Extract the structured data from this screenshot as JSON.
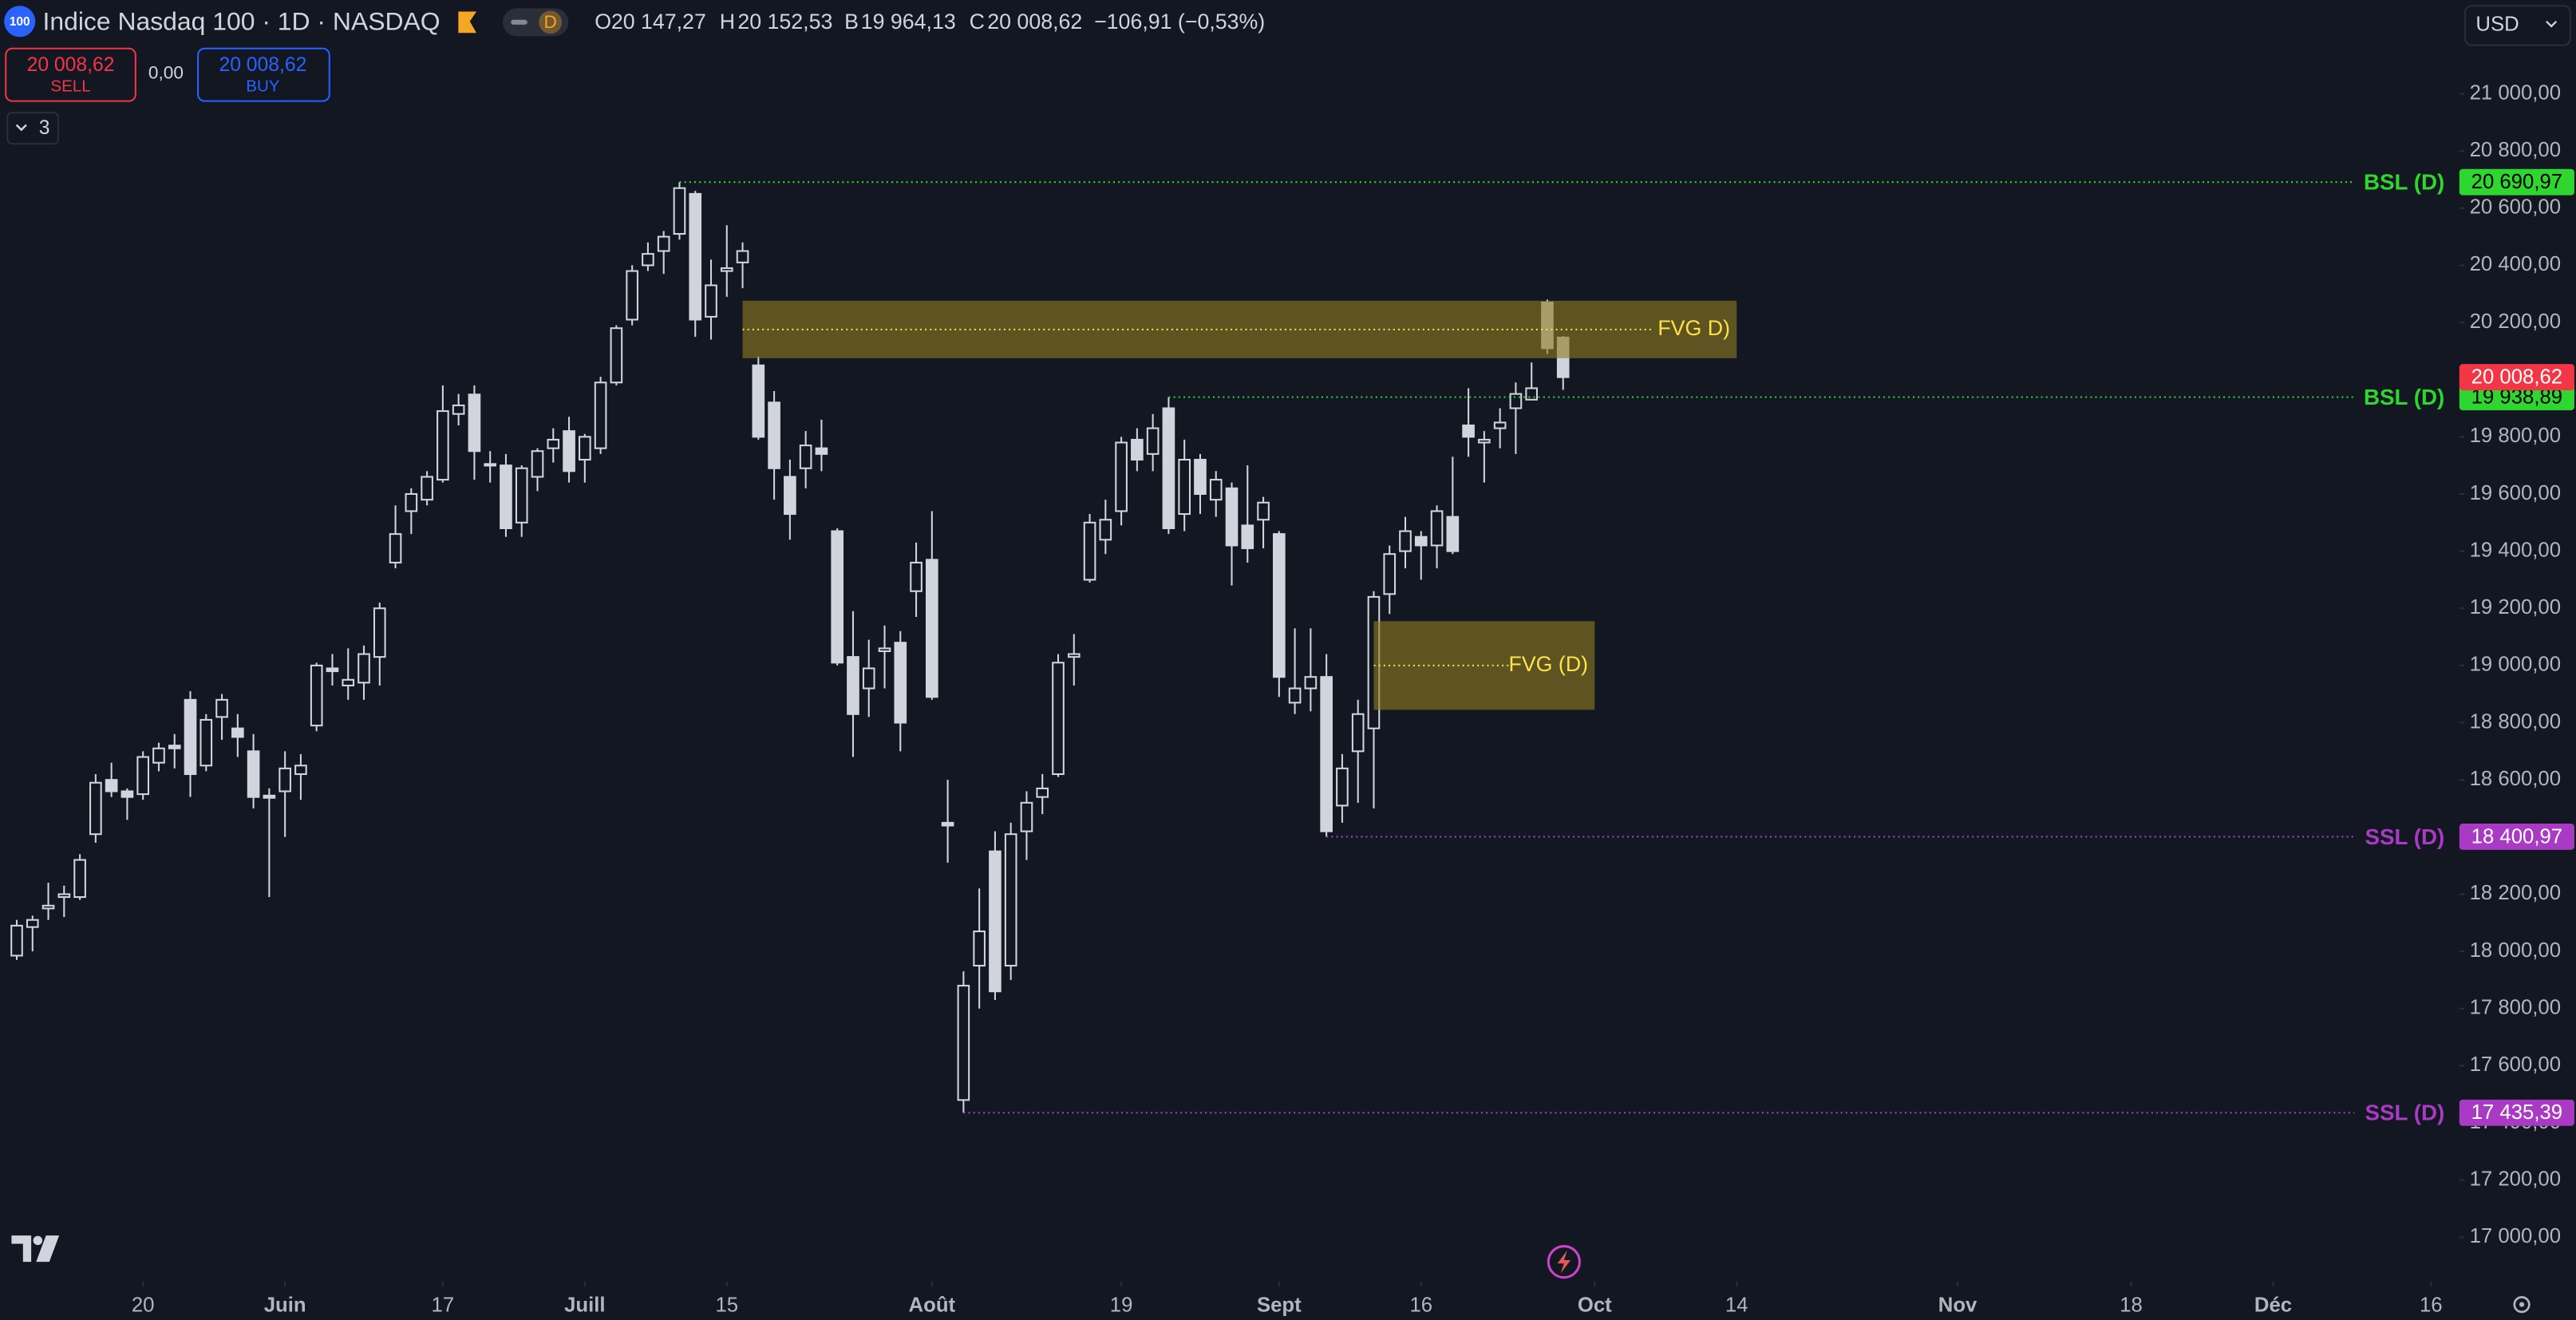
{
  "header": {
    "logo": "100",
    "title": "Indice Nasdaq 100 · 1D · NASDAQ",
    "interval_badge": "D",
    "open_key": "O",
    "open": "20 147,27",
    "high_key": "H",
    "high": "20 152,53",
    "low_key": "B",
    "low": "19 964,13",
    "close_key": "C",
    "close": "20 008,62",
    "change": "−106,91 (−0,53%)",
    "sell_price": "20 008,62",
    "sell": "SELL",
    "spread": "0,00",
    "buy_price": "20 008,62",
    "buy": "BUY",
    "indicators": "3",
    "currency": "USD"
  },
  "chart_data": {
    "type": "candlestick",
    "color": "#d1d4dc",
    "background": "#131722",
    "ohlc": {
      "open": [
        17985,
        18085,
        18150,
        18190,
        18190,
        18410,
        18600,
        18560,
        18550,
        18660,
        18720,
        18880,
        18650,
        18820,
        18780,
        18700,
        18545,
        18560,
        18620,
        18790,
        18990,
        18930,
        18940,
        19030,
        19360,
        19540,
        19580,
        19650,
        19880,
        19948,
        19705,
        19700,
        19500,
        19660,
        19760,
        19820,
        19720,
        19760,
        19990,
        20210,
        20400,
        20450,
        20510,
        20650,
        20220,
        20380,
        20410,
        20050,
        19920,
        19660,
        19690,
        19760,
        19470,
        19030,
        18920,
        19050,
        19080,
        19260,
        19370,
        18450,
        17480,
        17950,
        18350,
        17950,
        18420,
        18540,
        18620,
        19030,
        19300,
        19440,
        19540,
        19790,
        19740,
        19900,
        19530,
        19720,
        19580,
        19620,
        19490,
        19510,
        19460,
        18870,
        18920,
        18960,
        18510,
        18700,
        18780,
        19250,
        19400,
        19450,
        19420,
        19520,
        19840,
        19780,
        19830,
        19900,
        19930,
        20270,
        20147.27
      ],
      "high": [
        18110,
        18125,
        18240,
        18230,
        18340,
        18620,
        18660,
        18570,
        18700,
        18730,
        18760,
        18910,
        18830,
        18900,
        18830,
        18760,
        18570,
        18700,
        18690,
        19010,
        19040,
        19060,
        19070,
        19220,
        19560,
        19620,
        19680,
        19980,
        19950,
        19980,
        19750,
        19740,
        19700,
        19760,
        19830,
        19870,
        19810,
        20010,
        20190,
        20400,
        20480,
        20520,
        20690.97,
        20660,
        20420,
        20540,
        20480,
        20080,
        19960,
        19720,
        19820,
        19860,
        19480,
        19190,
        19090,
        19140,
        19120,
        19430,
        19540,
        18600,
        17930,
        18220,
        18420,
        18450,
        18560,
        18620,
        19040,
        19110,
        19530,
        19580,
        19800,
        19830,
        19880,
        19938.89,
        19790,
        19740,
        19680,
        19640,
        19700,
        19590,
        19470,
        19130,
        19130,
        19040,
        18690,
        18880,
        19260,
        19420,
        19520,
        19470,
        19560,
        19730,
        19970,
        19820,
        19900,
        19990,
        20060,
        20280,
        20152.53
      ],
      "low": [
        17970,
        18000,
        18110,
        18120,
        18180,
        18380,
        18540,
        18460,
        18530,
        18630,
        18640,
        18540,
        18630,
        18740,
        18680,
        18500,
        18190,
        18400,
        18530,
        18770,
        18930,
        18880,
        18880,
        18930,
        19340,
        19460,
        19560,
        19640,
        19840,
        19650,
        19640,
        19450,
        19450,
        19610,
        19710,
        19640,
        19640,
        19740,
        19980,
        20190,
        20380,
        20370,
        20490,
        20150,
        20140,
        20290,
        20320,
        19790,
        19580,
        19440,
        19620,
        19680,
        19000,
        18680,
        18820,
        18920,
        18700,
        19170,
        18880,
        18310,
        17435.39,
        17800,
        17830,
        17900,
        18320,
        18480,
        18610,
        18930,
        19290,
        19390,
        19490,
        19680,
        19680,
        19460,
        19470,
        19530,
        19520,
        19280,
        19360,
        19410,
        18890,
        18830,
        18840,
        18400.97,
        18450,
        18520,
        18500,
        19180,
        19340,
        19300,
        19340,
        19390,
        19730,
        19640,
        19760,
        19740,
        19930,
        20090,
        19964.13
      ],
      "close": [
        18090,
        18110,
        18160,
        18200,
        18320,
        18590,
        18560,
        18540,
        18680,
        18710,
        18710,
        18620,
        18810,
        18880,
        18750,
        18540,
        18537,
        18640,
        18650,
        19000,
        18980,
        18950,
        19040,
        19200,
        19460,
        19600,
        19660,
        19890,
        19910,
        19750,
        19700,
        19480,
        19690,
        19750,
        19790,
        19680,
        19800,
        19990,
        20180,
        20380,
        20440,
        20500,
        20670,
        20210,
        20330,
        20390,
        20450,
        19800,
        19690,
        19530,
        19770,
        19740,
        19010,
        18830,
        18990,
        19060,
        18800,
        19360,
        18890,
        18440,
        17880,
        18070,
        17860,
        18410,
        18520,
        18570,
        19010,
        19040,
        19500,
        19510,
        19780,
        19720,
        19830,
        19480,
        19720,
        19600,
        19650,
        19420,
        19410,
        19570,
        18960,
        18920,
        18960,
        18420,
        18640,
        18830,
        19240,
        19390,
        19470,
        19420,
        19540,
        19400,
        19800,
        19790,
        19850,
        19950,
        19970,
        20110,
        20008.62
      ]
    },
    "last_label": "20 008,62",
    "last_color": "#f23645",
    "xlim": [
      -1.062,
      154.8
    ],
    "xticks": [
      {
        "value": 8,
        "label": "20"
      },
      {
        "value": 17,
        "label": "Juin"
      },
      {
        "value": 27,
        "label": "17"
      },
      {
        "value": 36,
        "label": "Juill"
      },
      {
        "value": 45,
        "label": "15"
      },
      {
        "value": 58,
        "label": "Août"
      },
      {
        "value": 70,
        "label": "19"
      },
      {
        "value": 80,
        "label": "Sept"
      },
      {
        "value": 89,
        "label": "16"
      },
      {
        "value": 100,
        "label": "Oct"
      },
      {
        "value": 109,
        "label": "14"
      },
      {
        "value": 123,
        "label": "Nov"
      },
      {
        "value": 134,
        "label": "18"
      },
      {
        "value": 143,
        "label": "Déc"
      },
      {
        "value": 153,
        "label": "16"
      }
    ],
    "ylim": [
      16845,
      21328
    ],
    "yticks": [
      {
        "value": 21000,
        "label": "21 000,00"
      },
      {
        "value": 20800,
        "label": "20 800,00"
      },
      {
        "value": 20600,
        "label": "20 600,00"
      },
      {
        "value": 20400,
        "label": "20 400,00"
      },
      {
        "value": 20200,
        "label": "20 200,00"
      },
      {
        "value": 19800,
        "label": "19 800,00"
      },
      {
        "value": 19600,
        "label": "19 600,00"
      },
      {
        "value": 19400,
        "label": "19 400,00"
      },
      {
        "value": 19200,
        "label": "19 200,00"
      },
      {
        "value": 19000,
        "label": "19 000,00"
      },
      {
        "value": 18800,
        "label": "18 800,00"
      },
      {
        "value": 18600,
        "label": "18 600,00"
      },
      {
        "value": 18200,
        "label": "18 200,00"
      },
      {
        "value": 18000,
        "label": "18 000,00"
      },
      {
        "value": 17800,
        "label": "17 800,00"
      },
      {
        "value": 17600,
        "label": "17 600,00"
      },
      {
        "value": 17400,
        "label": "17 400,00"
      },
      {
        "value": 17200,
        "label": "17 200,00"
      },
      {
        "value": 17000,
        "label": "17 000,00"
      }
    ],
    "levels": [
      {
        "name": "BSL (D)",
        "value": 20690.97,
        "label": "20 690,97",
        "color": "#2fd62f",
        "text_color": "#000000"
      },
      {
        "name": "BSL (D)",
        "value": 19938.89,
        "label": "19 938,89",
        "color": "#2fd62f",
        "text_color": "#000000"
      },
      {
        "name": "SSL (D)",
        "value": 18400.97,
        "label": "18 400,97",
        "color": "#a93ac4",
        "text_color": "#ffffff"
      },
      {
        "name": "SSL (D)",
        "value": 17435.39,
        "label": "17 435,39",
        "color": "#a93ac4",
        "text_color": "#ffffff"
      }
    ],
    "zones": [
      {
        "label": "FVG D)",
        "top": 20276,
        "bottom": 20075,
        "from": 46,
        "to": 109,
        "color": "#8a7a22",
        "text_color": "#ffe14a"
      },
      {
        "label": "FVG (D)",
        "top": 19155,
        "bottom": 18845,
        "from": 86,
        "to": 100,
        "color": "#8a7a22",
        "text_color": "#ffe14a"
      }
    ]
  }
}
